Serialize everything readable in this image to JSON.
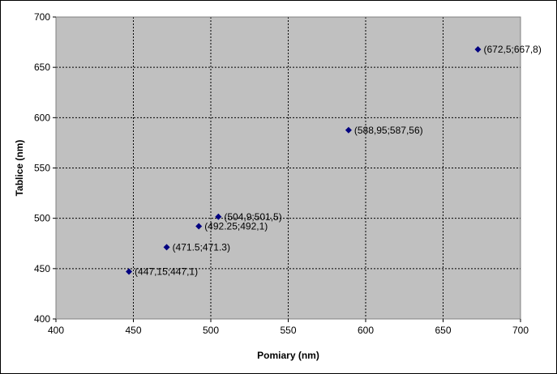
{
  "chart_data": {
    "type": "scatter",
    "title": "",
    "xlabel": "Pomiary (nm)",
    "ylabel": "Tablice (nm)",
    "xlim": [
      400,
      700
    ],
    "ylim": [
      400,
      700
    ],
    "xticks": [
      400,
      450,
      500,
      550,
      600,
      650,
      700
    ],
    "yticks": [
      400,
      450,
      500,
      550,
      600,
      650,
      700
    ],
    "grid": true,
    "legend": "none",
    "plot_background": "#c0c0c0",
    "marker_color": "#000080",
    "points": [
      {
        "x": 447.15,
        "y": 447.1,
        "label": "(447,15;447,1)"
      },
      {
        "x": 471.5,
        "y": 471.3,
        "label": "(471.5;471.3)"
      },
      {
        "x": 492.25,
        "y": 492.1,
        "label": "(492.25;492,1)"
      },
      {
        "x": 504.9,
        "y": 501.5,
        "label": "(504,9;501,5)"
      },
      {
        "x": 588.95,
        "y": 587.56,
        "label": "(588,95;587,56)"
      },
      {
        "x": 672.5,
        "y": 667.8,
        "label": "(672,5;667,8)"
      }
    ]
  }
}
